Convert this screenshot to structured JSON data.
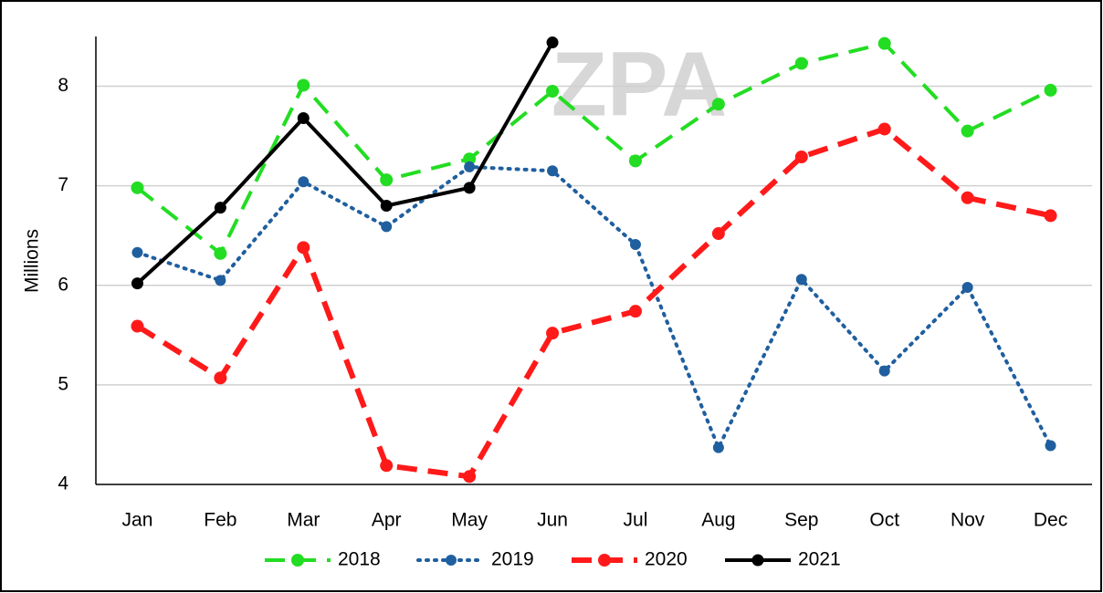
{
  "chart_data": {
    "type": "line",
    "watermark": "ZPA",
    "y_label": "Millions",
    "categories": [
      "Jan",
      "Feb",
      "Mar",
      "Apr",
      "May",
      "Jun",
      "Jul",
      "Aug",
      "Sep",
      "Oct",
      "Nov",
      "Dec"
    ],
    "series": [
      {
        "name": "2018",
        "color": "#22dd22",
        "style": "dashed",
        "values": [
          6.98,
          6.32,
          8.01,
          7.06,
          7.27,
          7.95,
          7.25,
          7.82,
          8.23,
          8.43,
          7.55,
          7.96
        ]
      },
      {
        "name": "2019",
        "color": "#1f5f9f",
        "style": "dotted",
        "values": [
          6.33,
          6.05,
          7.04,
          6.59,
          7.19,
          7.15,
          6.41,
          4.37,
          6.06,
          5.14,
          5.98,
          4.39
        ]
      },
      {
        "name": "2020",
        "color": "#ff1a1a",
        "style": "dashed-thick",
        "values": [
          5.59,
          5.07,
          6.38,
          4.19,
          4.08,
          5.52,
          5.74,
          6.52,
          7.29,
          7.57,
          6.88,
          6.7
        ]
      },
      {
        "name": "2021",
        "color": "#000000",
        "style": "solid",
        "values": [
          6.02,
          6.78,
          7.68,
          6.8,
          6.98,
          8.44,
          null,
          null,
          null,
          null,
          null,
          null
        ]
      }
    ],
    "ylim": [
      4,
      8.5
    ],
    "yticks": [
      4,
      5,
      6,
      7,
      8
    ],
    "grid": true,
    "legend": "bottom"
  }
}
